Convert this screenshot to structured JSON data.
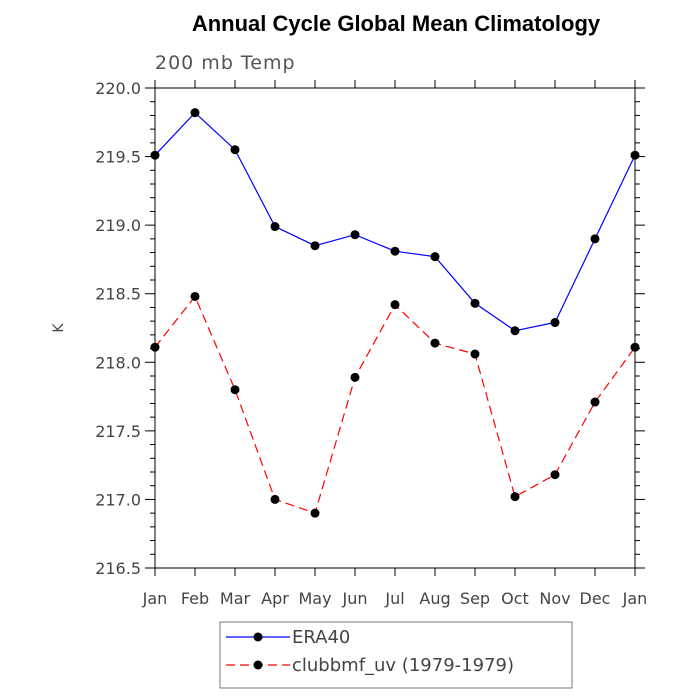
{
  "chart_data": {
    "type": "line",
    "title": "Annual Cycle Global Mean Climatology",
    "subtitle": "200 mb Temp",
    "ylabel": "K",
    "ylim": [
      216.5,
      220.0
    ],
    "yticks": [
      "216.5",
      "217.0",
      "217.5",
      "218.0",
      "218.5",
      "219.0",
      "219.5",
      "220.0"
    ],
    "categories": [
      "Jan",
      "Feb",
      "Mar",
      "Apr",
      "May",
      "Jun",
      "Jul",
      "Aug",
      "Sep",
      "Oct",
      "Nov",
      "Dec",
      "Jan"
    ],
    "series": [
      {
        "name": "ERA40",
        "color": "#0000ff",
        "line_style": "solid",
        "values": [
          219.51,
          219.82,
          219.55,
          218.99,
          218.85,
          218.93,
          218.81,
          218.77,
          218.43,
          218.23,
          218.29,
          218.9,
          219.51
        ]
      },
      {
        "name": "clubbmf_uv (1979-1979)",
        "color": "#ff0000",
        "line_style": "dashed",
        "values": [
          218.11,
          218.48,
          217.8,
          217.0,
          216.9,
          217.89,
          218.42,
          218.14,
          218.06,
          217.02,
          217.18,
          217.71,
          218.11
        ]
      }
    ],
    "legend_position": "bottom",
    "grid": false
  }
}
